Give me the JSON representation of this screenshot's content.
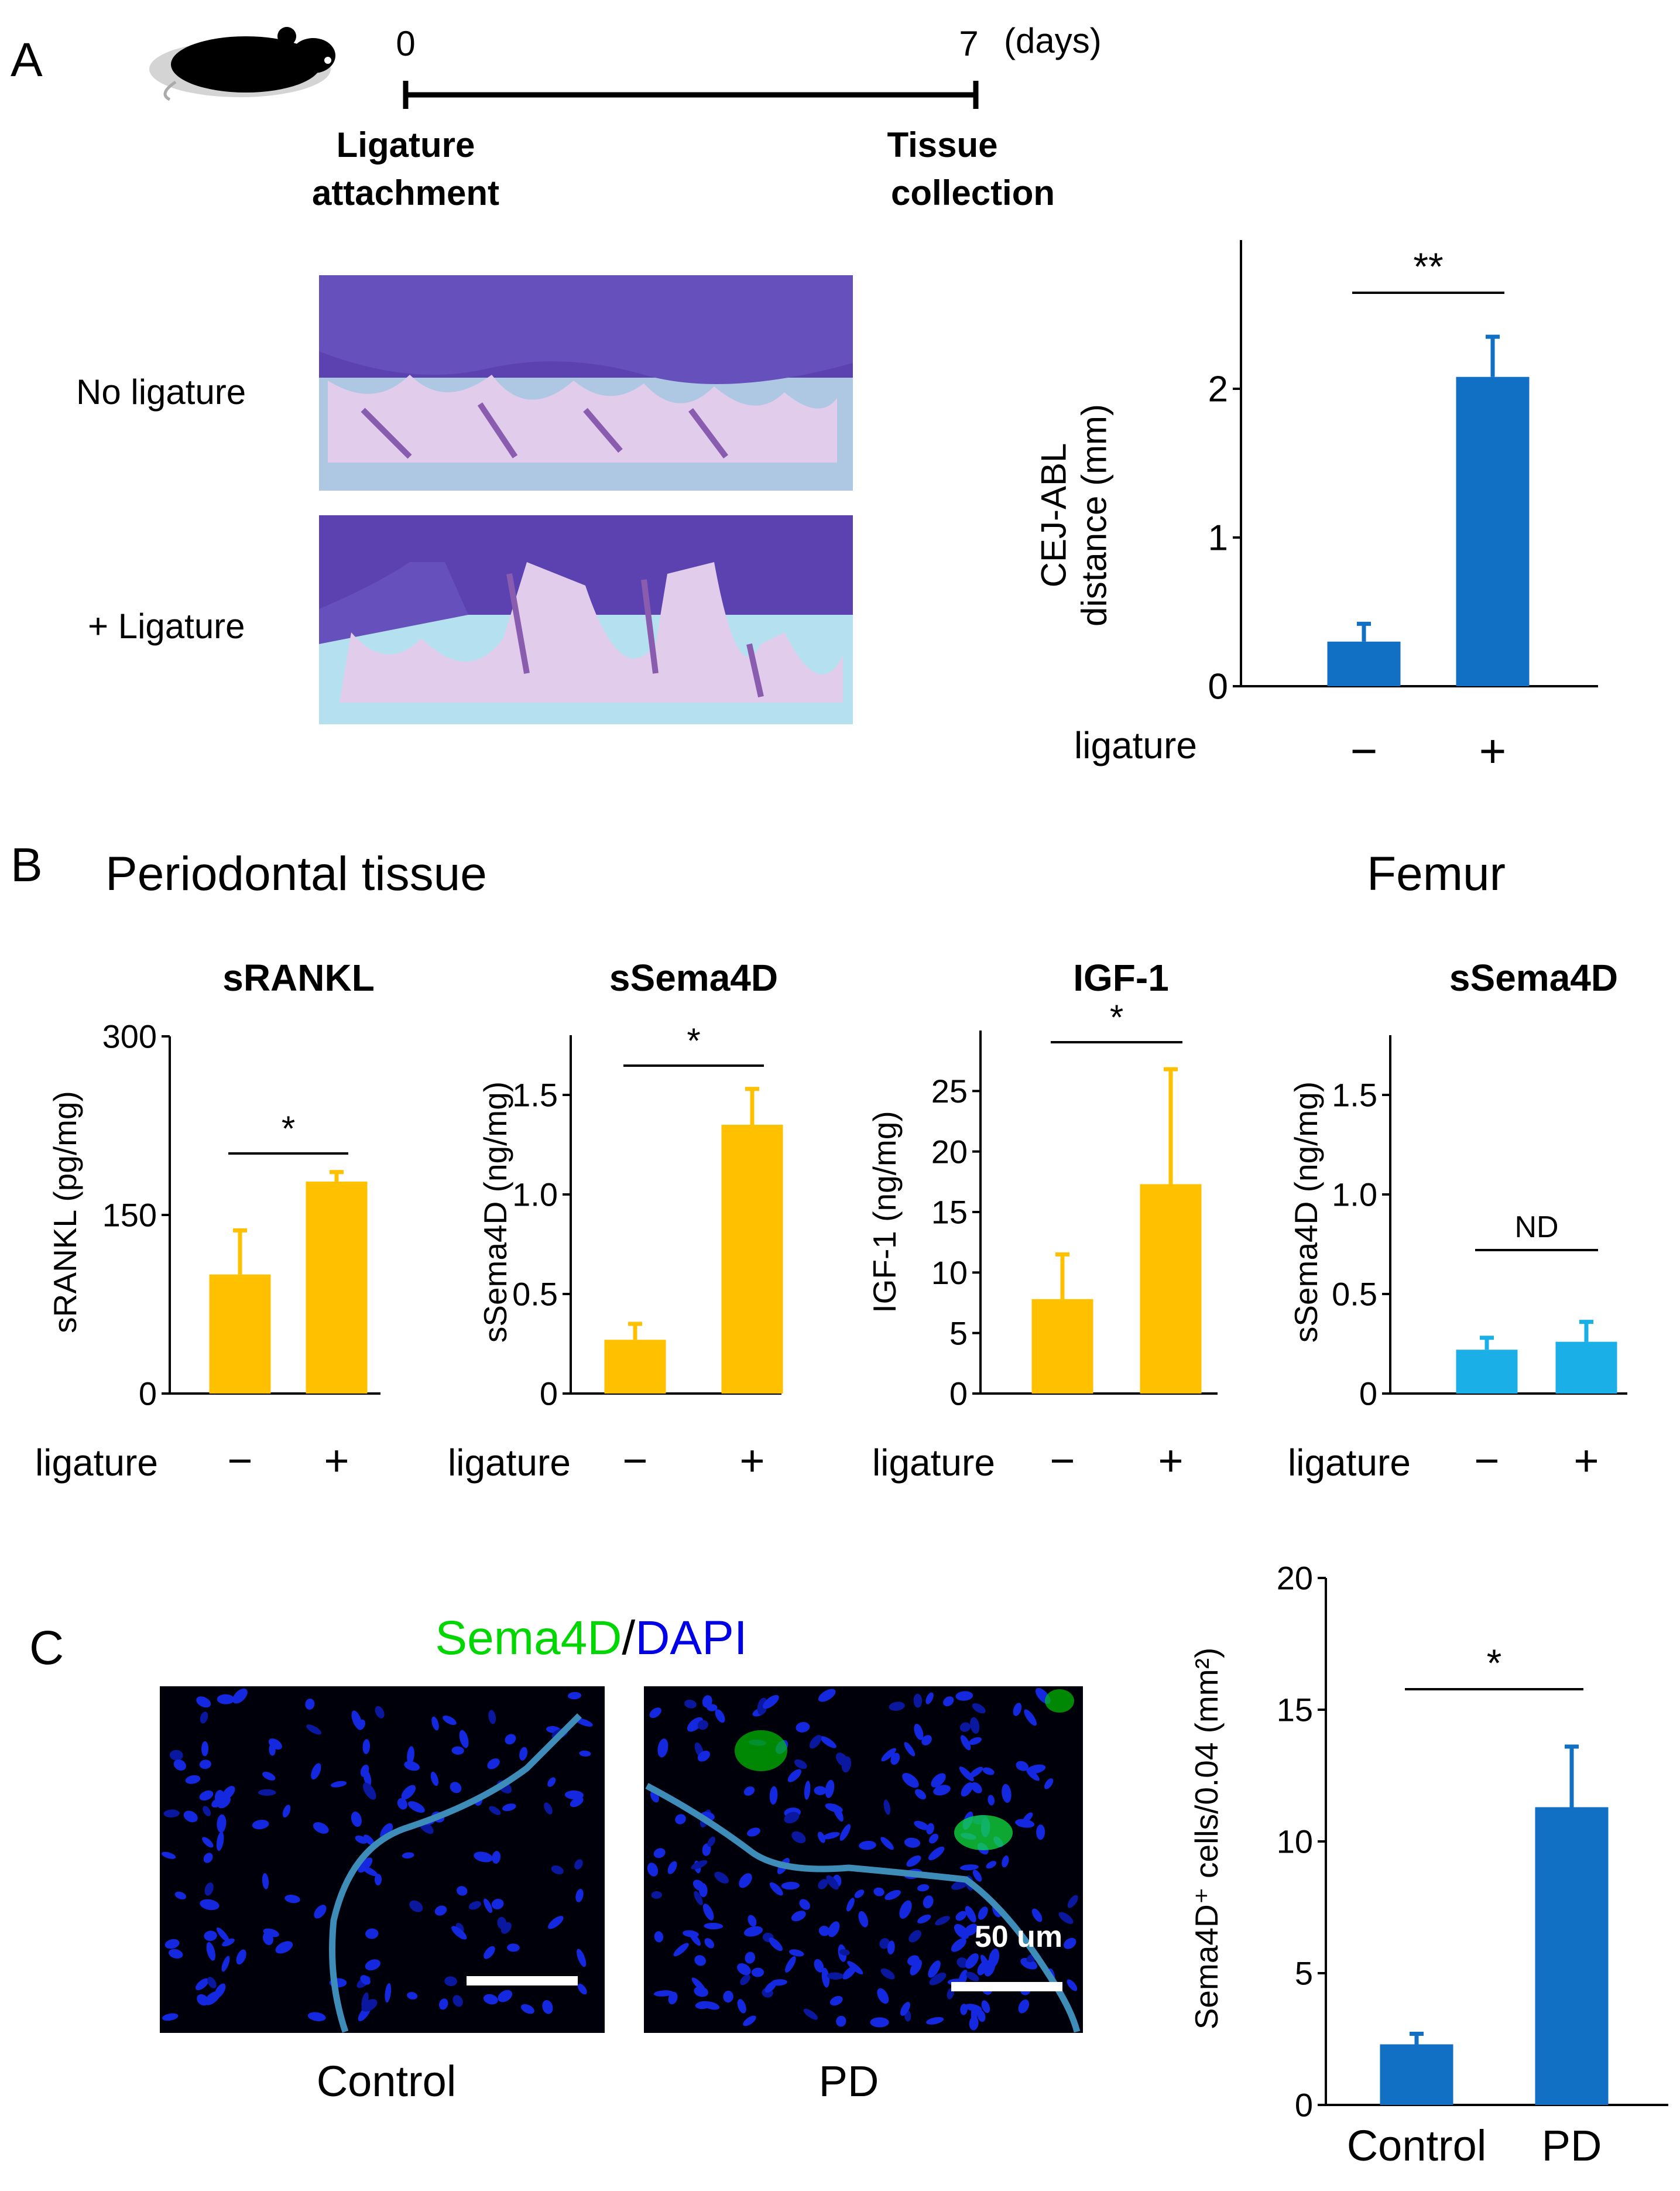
{
  "colors": {
    "blue": "#1270C4",
    "orange": "#FFC000",
    "lightblue": "#1AAFE6",
    "green": "#00D600",
    "dapi_blue": "#0000E6",
    "tissue_purple": "#6B55B8",
    "tooth": "#E8D4EE"
  },
  "panel_labels": {
    "a": "A",
    "b": "B",
    "c": "C"
  },
  "timeline": {
    "start": "0",
    "end": "7",
    "unit": "(days)",
    "start_label": [
      "Ligature",
      "attachment"
    ],
    "end_label": [
      "Tissue",
      "collection"
    ]
  },
  "panelA_images": {
    "row1_label": "No ligature",
    "row2_label": "+ Ligature"
  },
  "panelB_headers": {
    "left": "Periodontal tissue",
    "right": "Femur"
  },
  "panelC_images": {
    "stain_green": "Sema4D",
    "stain_sep": "/",
    "stain_blue": "DAPI",
    "left_label": "Control",
    "right_label": "PD",
    "scale_label": "50 um"
  },
  "chart_data": [
    {
      "id": "cej",
      "type": "bar",
      "title": "",
      "ylabel": [
        "CEJ-ABL",
        "distance (mm)"
      ],
      "xlabel": "ligature",
      "categories": [
        "−",
        "+"
      ],
      "values": [
        0.3,
        2.08
      ],
      "errors": [
        0.12,
        0.27
      ],
      "ylim": [
        0,
        3
      ],
      "yticks": [
        0,
        1,
        2
      ],
      "color": "#1270C4",
      "significance": "**",
      "grid": false
    },
    {
      "id": "srankl",
      "type": "bar",
      "title": "sRANKL",
      "ylabel": [
        "sRANKL (pg/mg)"
      ],
      "xlabel": "ligature",
      "categories": [
        "−",
        "+"
      ],
      "values": [
        100,
        178
      ],
      "errors": [
        37,
        8
      ],
      "ylim": [
        0,
        300
      ],
      "yticks": [
        0,
        150,
        300
      ],
      "color": "#FFC000",
      "significance": "*",
      "grid": false
    },
    {
      "id": "ssema4d_pd",
      "type": "bar",
      "title": "sSema4D",
      "ylabel": [
        "sSema4D (ng/mg)"
      ],
      "xlabel": "ligature",
      "categories": [
        "−",
        "+"
      ],
      "values": [
        0.27,
        1.35
      ],
      "errors": [
        0.08,
        0.18
      ],
      "ylim": [
        0,
        1.8
      ],
      "yticks": [
        0,
        0.5,
        1.0,
        1.5
      ],
      "ytick_labels": [
        "0",
        "0.5",
        "1.0",
        "1.5"
      ],
      "color": "#FFC000",
      "significance": "*",
      "grid": false
    },
    {
      "id": "igf1",
      "type": "bar",
      "title": "IGF-1",
      "ylabel": [
        "IGF-1  (ng/mg)"
      ],
      "xlabel": "ligature",
      "categories": [
        "−",
        "+"
      ],
      "values": [
        7.8,
        17.3
      ],
      "errors": [
        3.7,
        9.5
      ],
      "ylim": [
        0,
        30
      ],
      "yticks": [
        0,
        5,
        10,
        15,
        20,
        25
      ],
      "color": "#FFC000",
      "significance": "*",
      "grid": false
    },
    {
      "id": "ssema4d_femur",
      "type": "bar",
      "title": "sSema4D",
      "ylabel": [
        "sSema4D (ng/mg)"
      ],
      "xlabel": "ligature",
      "categories": [
        "−",
        "+"
      ],
      "values": [
        0.22,
        0.26
      ],
      "errors": [
        0.06,
        0.1
      ],
      "ylim": [
        0,
        1.8
      ],
      "yticks": [
        0,
        0.5,
        1.0,
        1.5
      ],
      "ytick_labels": [
        "0",
        "0.5",
        "1.0",
        "1.5"
      ],
      "color": "#1AAFE6",
      "significance": "ND",
      "grid": false
    },
    {
      "id": "sema4d_cells",
      "type": "bar",
      "title": "",
      "ylabel": [
        "Sema4D⁺ cells/0.04 (mm²)"
      ],
      "xlabel": "",
      "categories": [
        "Control",
        "PD"
      ],
      "values": [
        2.3,
        11.3
      ],
      "errors": [
        0.4,
        2.3
      ],
      "ylim": [
        0,
        20
      ],
      "yticks": [
        0,
        5,
        10,
        15,
        20
      ],
      "color": "#1270C4",
      "significance": "*",
      "grid": false
    }
  ]
}
